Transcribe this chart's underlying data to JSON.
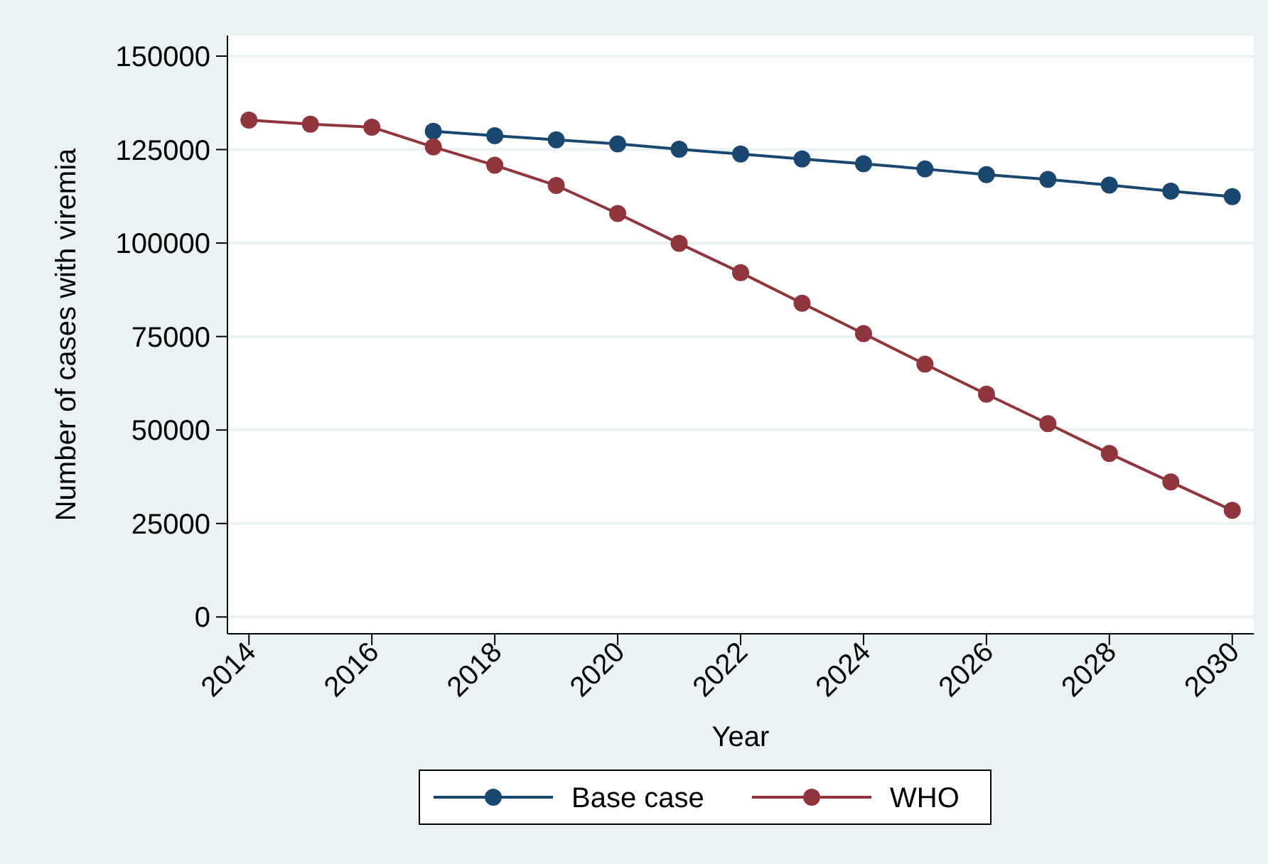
{
  "chart_data": {
    "type": "line",
    "xlabel": "Year",
    "ylabel": "Number of cases with viremia",
    "x": [
      2014,
      2015,
      2016,
      2017,
      2018,
      2019,
      2020,
      2021,
      2022,
      2023,
      2024,
      2025,
      2026,
      2027,
      2028,
      2029,
      2030
    ],
    "series": [
      {
        "name": "Base case",
        "color": "#1a476f",
        "values": [
          null,
          null,
          null,
          129900,
          128700,
          127600,
          126500,
          125100,
          123800,
          122500,
          121200,
          119800,
          118300,
          117000,
          115500,
          113900,
          112400
        ]
      },
      {
        "name": "WHO",
        "color": "#90353b",
        "values": [
          132900,
          131800,
          131000,
          125700,
          120800,
          115400,
          107900,
          99900,
          92100,
          83900,
          75800,
          67600,
          59600,
          51700,
          43700,
          36100,
          28500
        ]
      }
    ],
    "xlim": [
      2013.65,
      2030.35
    ],
    "xticks": [
      2014,
      2016,
      2018,
      2020,
      2022,
      2024,
      2026,
      2028,
      2030
    ],
    "ylim": [
      -4500,
      155500
    ],
    "yticks": [
      0,
      25000,
      50000,
      75000,
      100000,
      125000,
      150000
    ],
    "grid": "y",
    "legend": "bottom",
    "marker": "circle",
    "line_style": "solid"
  }
}
